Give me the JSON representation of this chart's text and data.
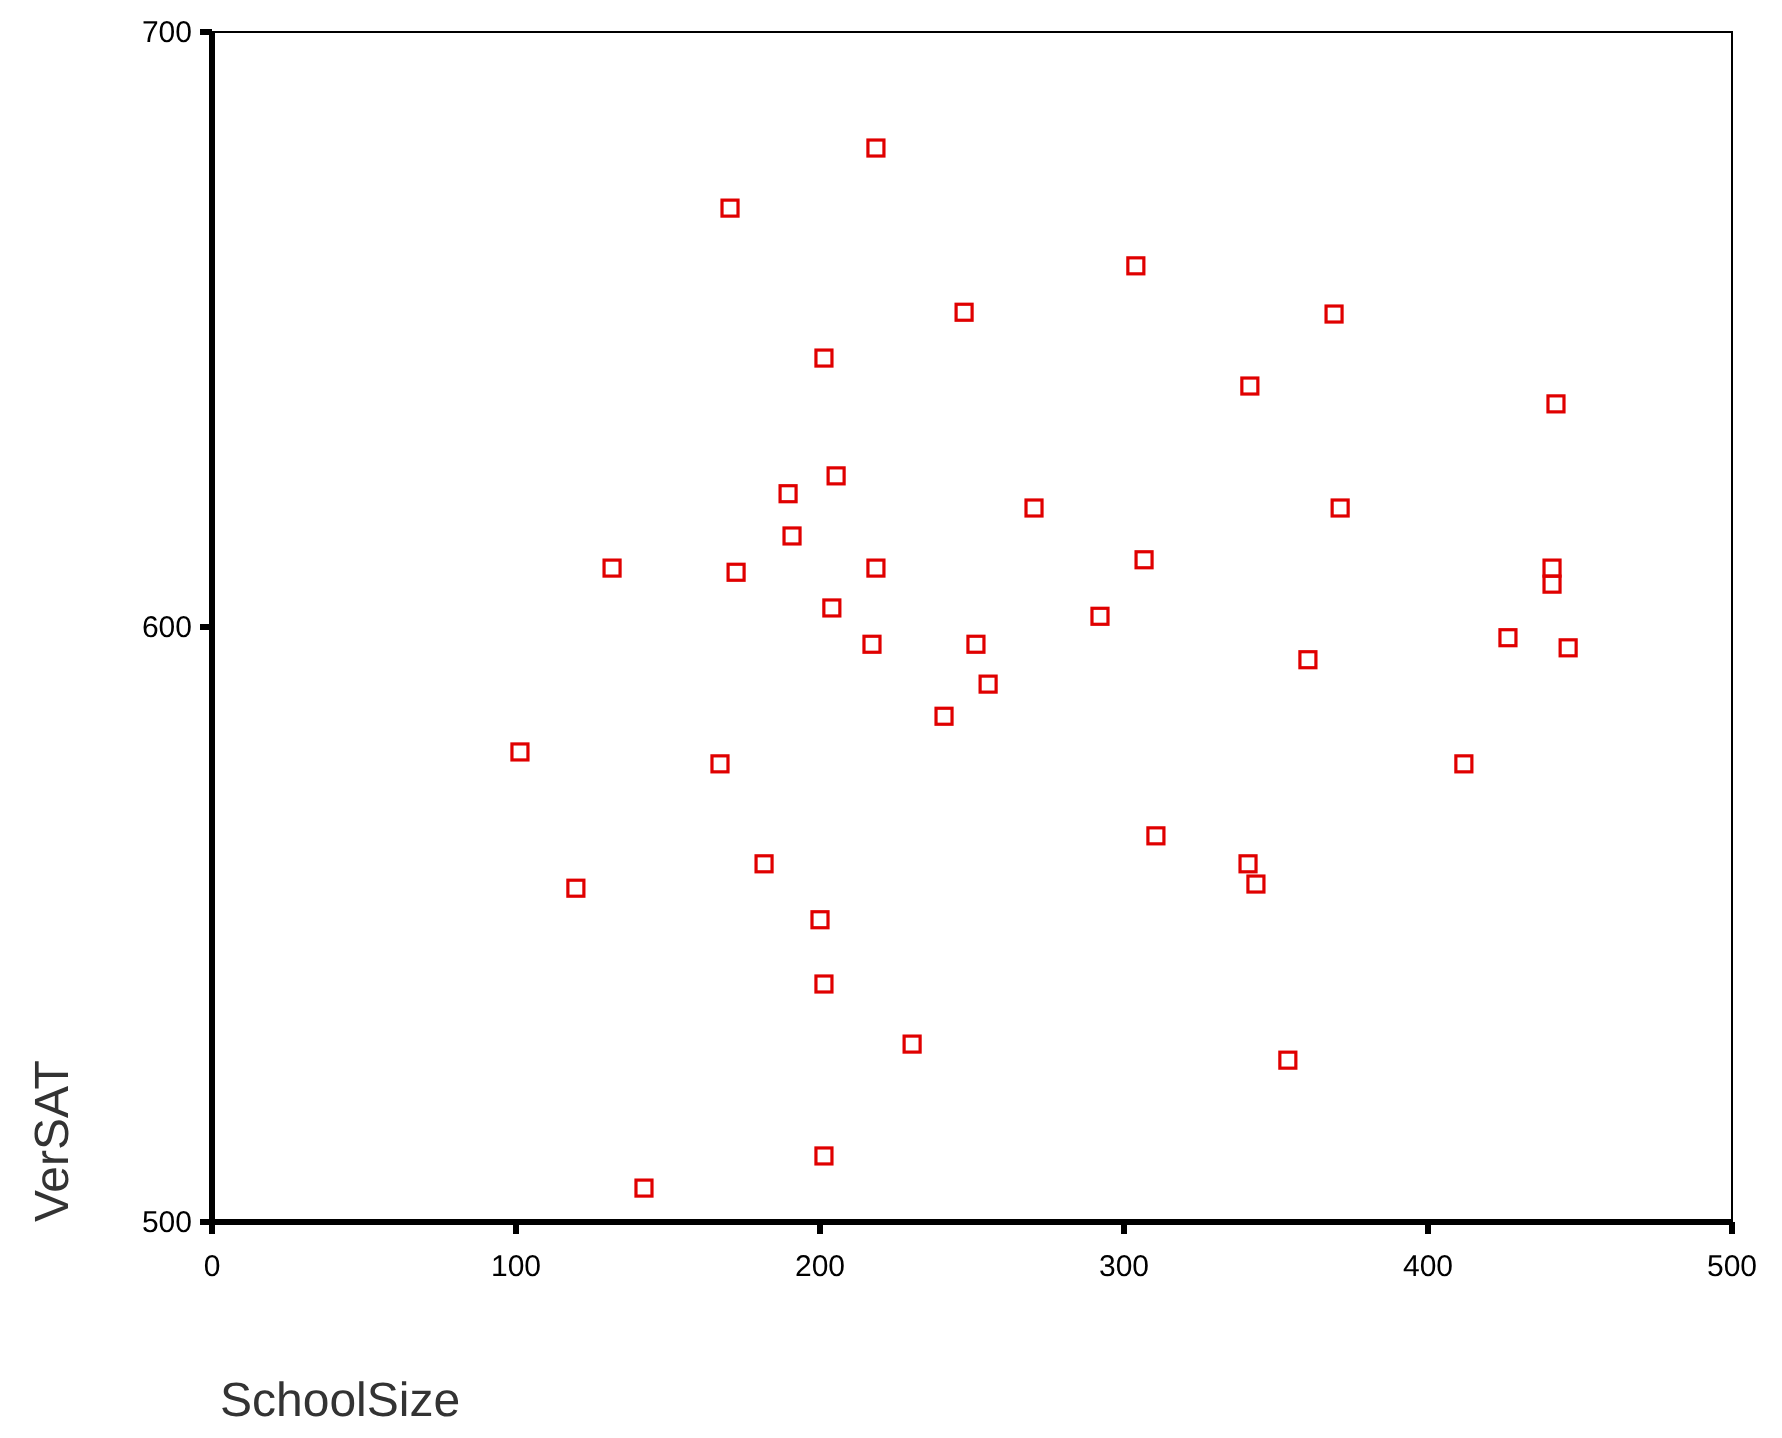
{
  "chart_data": {
    "type": "scatter",
    "xlabel": "SchoolSize",
    "ylabel": "VerSAT",
    "xlim": [
      0,
      500
    ],
    "ylim": [
      500,
      700
    ],
    "xticks": [
      0,
      100,
      200,
      300,
      400,
      500
    ],
    "yticks": [
      500,
      600,
      700
    ],
    "grid": false,
    "marker": "square",
    "series": [
      {
        "color": "#e00000",
        "x": [
          218.4,
          170.4,
          303.9,
          247.4,
          369.1,
          201.3,
          341.4,
          442.1,
          205.3,
          189.5,
          270.4,
          371.1,
          190.8,
          306.6,
          131.6,
          172.4,
          218.4,
          440.8,
          440.8,
          203.9,
          292.1,
          426.3,
          217.1,
          251.3,
          446.1,
          360.5,
          255.3,
          240.8,
          101.3,
          167.1,
          411.8,
          310.5,
          181.6,
          340.8,
          343.4,
          119.7,
          200.0,
          201.3,
          230.3,
          353.9,
          201.3,
          142.1
        ],
        "values": [
          680.5,
          670.4,
          660.7,
          652.9,
          652.6,
          645.2,
          640.5,
          637.5,
          625.4,
          622.4,
          620.0,
          620.0,
          615.3,
          611.3,
          609.9,
          609.2,
          609.9,
          609.9,
          607.2,
          603.2,
          601.8,
          598.2,
          597.1,
          597.1,
          596.5,
          594.5,
          590.4,
          585.0,
          579.0,
          577.0,
          577.0,
          564.9,
          560.2,
          560.2,
          556.8,
          556.1,
          550.8,
          540.0,
          529.9,
          527.2,
          511.1,
          505.7
        ]
      }
    ]
  }
}
